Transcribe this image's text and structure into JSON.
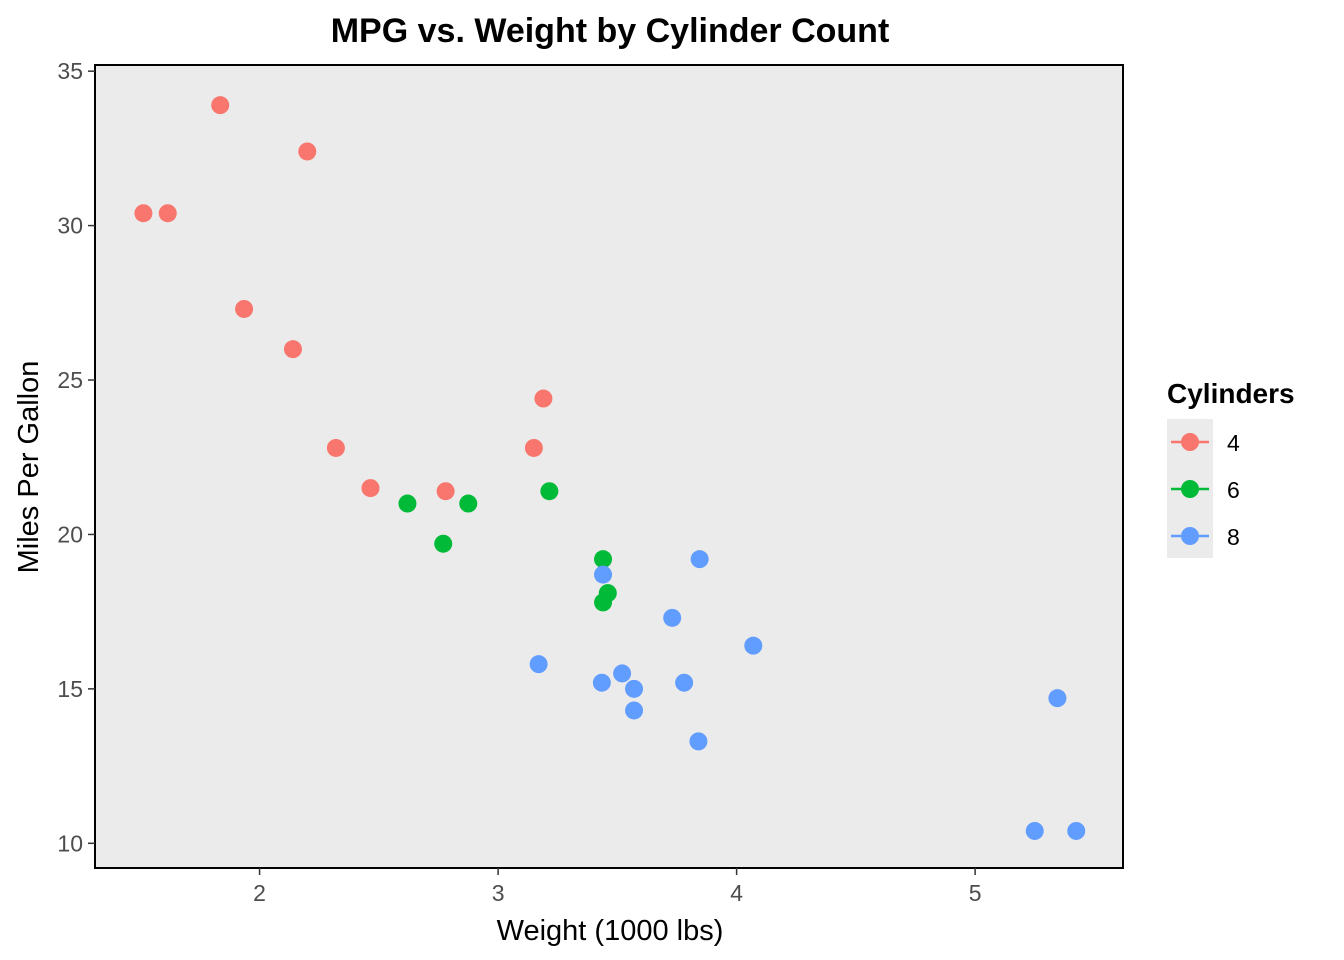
{
  "chart_data": {
    "type": "scatter",
    "title": "MPG vs. Weight by Cylinder Count",
    "xlabel": "Weight (1000 lbs)",
    "ylabel": "Miles Per Gallon",
    "xlim": [
      1.31,
      5.62
    ],
    "ylim": [
      9.2,
      35.2
    ],
    "xticks": [
      2,
      3,
      4,
      5
    ],
    "xtick_labels": [
      "2",
      "3",
      "4",
      "5"
    ],
    "yticks": [
      10,
      15,
      20,
      25,
      30,
      35
    ],
    "ytick_labels": [
      "10",
      "15",
      "20",
      "25",
      "30",
      "35"
    ],
    "grid": false,
    "legend": {
      "title": "Cylinders",
      "position": "right"
    },
    "series": [
      {
        "name": "4",
        "color": "#F8766D",
        "points": [
          {
            "x": 2.32,
            "y": 22.8
          },
          {
            "x": 3.19,
            "y": 24.4
          },
          {
            "x": 3.15,
            "y": 22.8
          },
          {
            "x": 2.2,
            "y": 32.4
          },
          {
            "x": 1.615,
            "y": 30.4
          },
          {
            "x": 1.835,
            "y": 33.9
          },
          {
            "x": 2.465,
            "y": 21.5
          },
          {
            "x": 1.935,
            "y": 27.3
          },
          {
            "x": 2.14,
            "y": 26.0
          },
          {
            "x": 1.513,
            "y": 30.4
          },
          {
            "x": 2.78,
            "y": 21.4
          }
        ]
      },
      {
        "name": "6",
        "color": "#00BA38",
        "points": [
          {
            "x": 2.62,
            "y": 21.0
          },
          {
            "x": 2.875,
            "y": 21.0
          },
          {
            "x": 3.215,
            "y": 21.4
          },
          {
            "x": 3.46,
            "y": 18.1
          },
          {
            "x": 3.44,
            "y": 19.2
          },
          {
            "x": 3.44,
            "y": 17.8
          },
          {
            "x": 2.77,
            "y": 19.7
          }
        ]
      },
      {
        "name": "8",
        "color": "#619CFF",
        "points": [
          {
            "x": 3.44,
            "y": 18.7
          },
          {
            "x": 3.57,
            "y": 14.3
          },
          {
            "x": 4.07,
            "y": 16.4
          },
          {
            "x": 3.73,
            "y": 17.3
          },
          {
            "x": 3.78,
            "y": 15.2
          },
          {
            "x": 5.25,
            "y": 10.4
          },
          {
            "x": 5.424,
            "y": 10.4
          },
          {
            "x": 5.345,
            "y": 14.7
          },
          {
            "x": 3.52,
            "y": 15.5
          },
          {
            "x": 3.435,
            "y": 15.2
          },
          {
            "x": 3.84,
            "y": 13.3
          },
          {
            "x": 3.845,
            "y": 19.2
          },
          {
            "x": 3.17,
            "y": 15.8
          },
          {
            "x": 3.57,
            "y": 15.0
          }
        ]
      }
    ]
  }
}
